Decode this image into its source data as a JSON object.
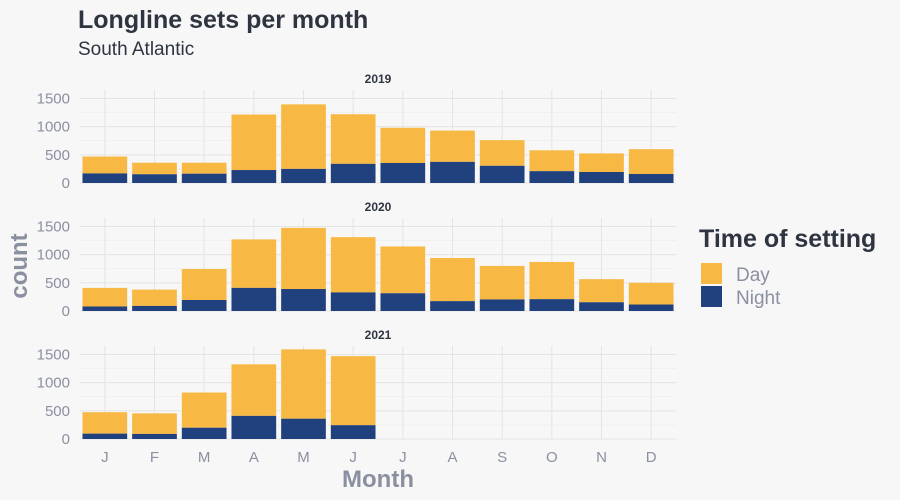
{
  "chart_data": {
    "type": "bar",
    "stacked": true,
    "faceted": true,
    "title": "Longline sets per month",
    "subtitle": "South Atlantic",
    "xlabel": "Month",
    "ylabel": "count",
    "categories": [
      "J",
      "F",
      "M",
      "A",
      "M",
      "J",
      "J",
      "A",
      "S",
      "O",
      "N",
      "D"
    ],
    "ylim": [
      0,
      1650
    ],
    "yticks": [
      0,
      500,
      1000,
      1500
    ],
    "grid": true,
    "legend": {
      "title": "Time of setting",
      "position": "right",
      "entries": [
        {
          "name": "Day",
          "color": "#f7b844"
        },
        {
          "name": "Night",
          "color": "#21407e"
        }
      ]
    },
    "facets": [
      {
        "label": "2019",
        "night": [
          170,
          155,
          165,
          230,
          250,
          340,
          355,
          375,
          305,
          210,
          195,
          160
        ],
        "total": [
          470,
          360,
          360,
          1215,
          1395,
          1220,
          980,
          930,
          760,
          580,
          525,
          600
        ]
      },
      {
        "label": "2020",
        "night": [
          80,
          90,
          195,
          410,
          390,
          330,
          315,
          175,
          205,
          210,
          155,
          115
        ],
        "total": [
          410,
          380,
          745,
          1270,
          1475,
          1310,
          1145,
          940,
          800,
          870,
          565,
          500
        ]
      },
      {
        "label": "2021",
        "night": [
          95,
          90,
          200,
          410,
          360,
          245
        ],
        "total": [
          475,
          455,
          825,
          1325,
          1590,
          1470
        ]
      }
    ]
  }
}
